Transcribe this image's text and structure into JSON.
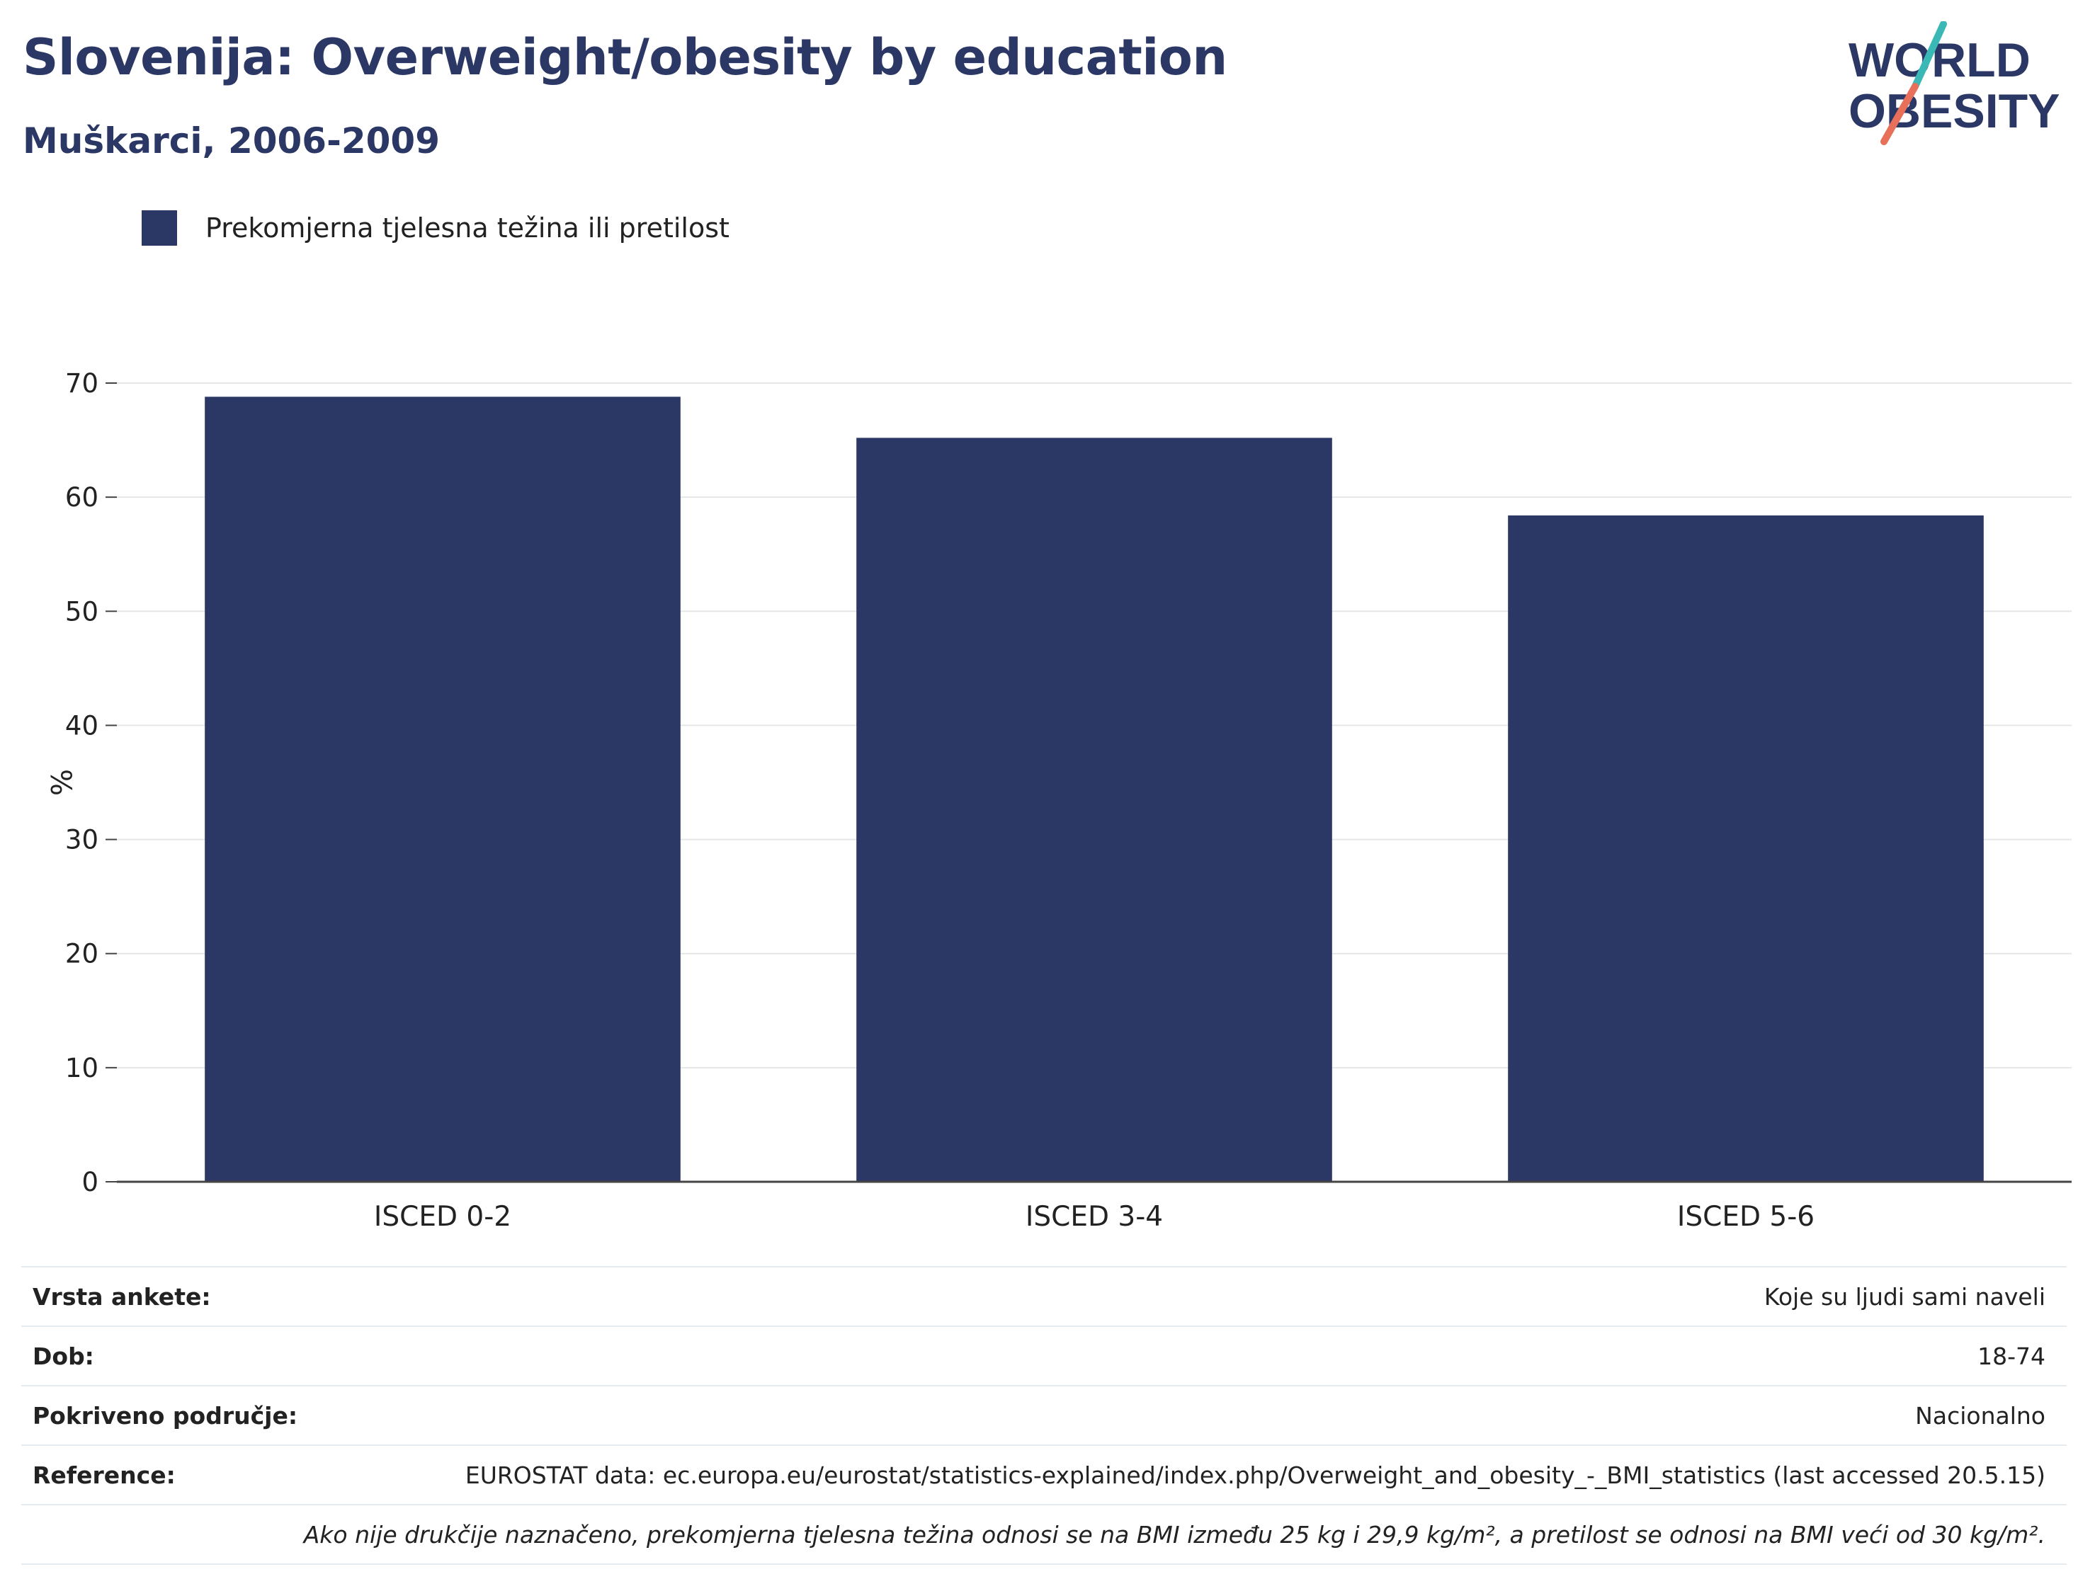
{
  "header": {
    "title": "Slovenija: Overweight/obesity by education",
    "subtitle": "Muškarci, 2006-2009"
  },
  "logo": {
    "line1": "WORLD",
    "line2": "OBESITY",
    "colors": {
      "text": "#2b3764",
      "slash_top": "#3ab8b5",
      "slash_bottom": "#e8705a"
    }
  },
  "colors": {
    "bar": "#2b3764",
    "grid": "#e6e6e6",
    "axis": "#444444",
    "text": "#222222"
  },
  "chart_data": {
    "type": "bar",
    "categories": [
      "ISCED 0-2",
      "ISCED 3-4",
      "ISCED 5-6"
    ],
    "series": [
      {
        "name": "Prekomjerna tjelesna težina ili pretilost",
        "values": [
          68.8,
          65.2,
          58.4
        ]
      }
    ],
    "title": "Slovenija: Overweight/obesity by education",
    "subtitle": "Muškarci, 2006-2009",
    "xlabel": "",
    "ylabel": "%",
    "ylim": [
      0,
      70
    ],
    "yticks": [
      0,
      10,
      20,
      30,
      40,
      50,
      60,
      70
    ],
    "grid": true,
    "legend": "top-left"
  },
  "meta": {
    "rows": [
      {
        "key": "Vrsta ankete:",
        "value": "Koje su ljudi sami naveli"
      },
      {
        "key": "Dob:",
        "value": "18-74"
      },
      {
        "key": "Pokriveno područje:",
        "value": "Nacionalno"
      },
      {
        "key": "Reference:",
        "value": "EUROSTAT data: ec.europa.eu/eurostat/statistics-explained/index.php/Overweight_and_obesity_-_BMI_statistics (last accessed 20.5.15)"
      }
    ],
    "note": "Ako nije drukčije naznačeno, prekomjerna tjelesna težina odnosi se na BMI između 25 kg i 29,9 kg/m², a pretilost se odnosi na BMI veći od 30 kg/m²."
  }
}
